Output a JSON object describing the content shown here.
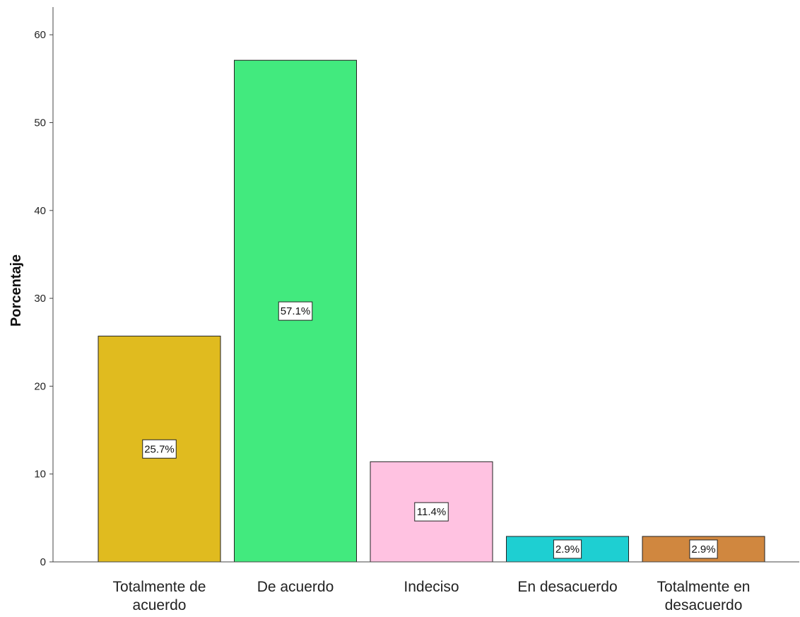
{
  "chart_data": {
    "type": "bar",
    "ylabel": "Porcentaje",
    "xlabel": "",
    "ylim": [
      0,
      62
    ],
    "yticks": [
      0,
      10,
      20,
      30,
      40,
      50,
      60
    ],
    "grid": false,
    "categories": [
      [
        "Totalmente de",
        "acuerdo"
      ],
      [
        "De acuerdo"
      ],
      [
        "Indeciso"
      ],
      [
        "En desacuerdo"
      ],
      [
        "Totalmente en",
        "desacuerdo"
      ]
    ],
    "values": [
      25.7,
      57.1,
      11.4,
      2.9,
      2.9
    ],
    "data_labels": [
      "25.7%",
      "57.1%",
      "11.4%",
      "2.9%",
      "2.9%"
    ],
    "colors": [
      "#e0bb1f",
      "#42ea7e",
      "#ffc2e1",
      "#1ecfd2",
      "#d0873f"
    ]
  }
}
